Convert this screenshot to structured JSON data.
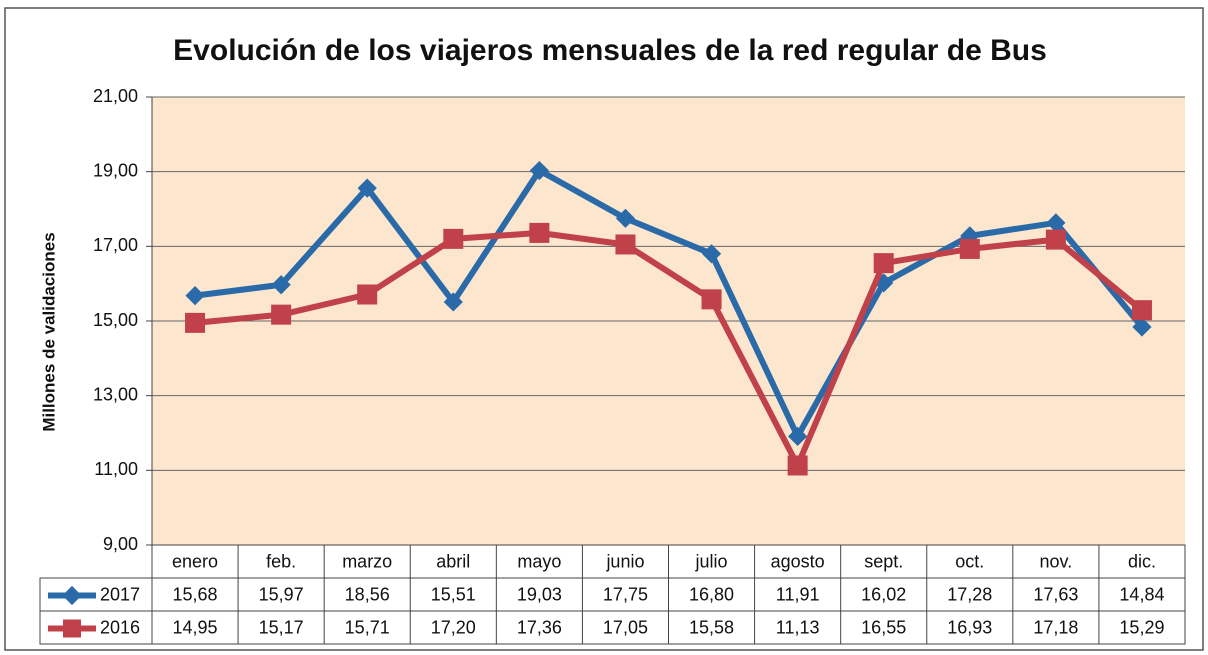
{
  "chart_data": {
    "type": "line",
    "title": "Evolución de los viajeros mensuales de la red regular de Bus",
    "y_label": "Millones de validaciones",
    "categories": [
      "enero",
      "feb.",
      "marzo",
      "abril",
      "mayo",
      "junio",
      "julio",
      "agosto",
      "sept.",
      "oct.",
      "nov.",
      "dic."
    ],
    "series": [
      {
        "name": "2017",
        "color": "#2a6aa8",
        "marker": "diamond",
        "values": [
          15.68,
          15.97,
          18.56,
          15.51,
          19.03,
          17.75,
          16.8,
          11.91,
          16.02,
          17.28,
          17.63,
          14.84
        ],
        "value_labels": [
          "15,68",
          "15,97",
          "18,56",
          "15,51",
          "19,03",
          "17,75",
          "16,80",
          "11,91",
          "16,02",
          "17,28",
          "17,63",
          "14,84"
        ]
      },
      {
        "name": "2016",
        "color": "#c0414a",
        "marker": "square",
        "values": [
          14.95,
          15.17,
          15.71,
          17.2,
          17.36,
          17.05,
          15.58,
          11.13,
          16.55,
          16.93,
          17.18,
          15.29
        ],
        "value_labels": [
          "14,95",
          "15,17",
          "15,71",
          "17,20",
          "17,36",
          "17,05",
          "15,58",
          "11,13",
          "16,55",
          "16,93",
          "17,18",
          "15,29"
        ]
      }
    ],
    "ylim": [
      9,
      21
    ],
    "yticks": [
      {
        "value": 9,
        "label": "9,00"
      },
      {
        "value": 11,
        "label": "11,00"
      },
      {
        "value": 13,
        "label": "13,00"
      },
      {
        "value": 15,
        "label": "15,00"
      },
      {
        "value": 17,
        "label": "17,00"
      },
      {
        "value": 19,
        "label": "19,00"
      },
      {
        "value": 21,
        "label": "21,00"
      }
    ],
    "grid": true
  }
}
